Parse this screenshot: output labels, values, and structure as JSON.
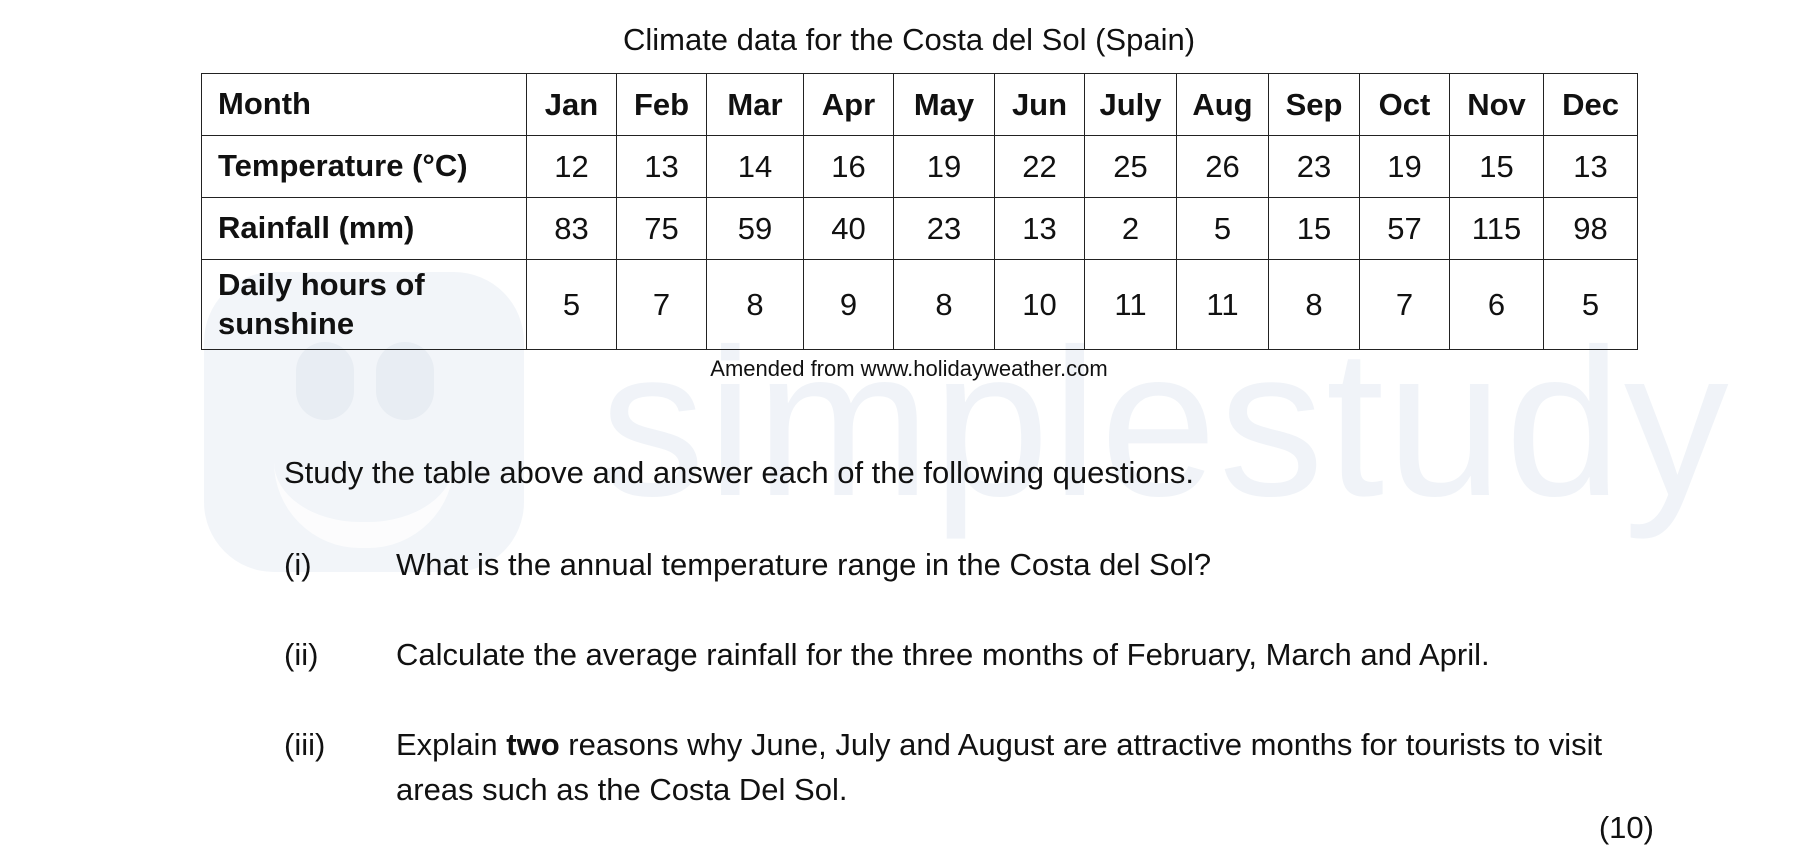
{
  "caption": "Climate data for the Costa del Sol (Spain)",
  "table": {
    "header_label": "Month",
    "months": [
      "Jan",
      "Feb",
      "Mar",
      "Apr",
      "May",
      "Jun",
      "July",
      "Aug",
      "Sep",
      "Oct",
      "Nov",
      "Dec"
    ],
    "rows": [
      {
        "label": "Temperature (°C)",
        "values": [
          "12",
          "13",
          "14",
          "16",
          "19",
          "22",
          "25",
          "26",
          "23",
          "19",
          "15",
          "13"
        ]
      },
      {
        "label": "Rainfall (mm)",
        "values": [
          "83",
          "75",
          "59",
          "40",
          "23",
          "13",
          "2",
          "5",
          "15",
          "57",
          "115",
          "98"
        ]
      },
      {
        "label": "Daily hours of sunshine",
        "values": [
          "5",
          "7",
          "8",
          "9",
          "8",
          "10",
          "11",
          "11",
          "8",
          "7",
          "6",
          "5"
        ]
      }
    ]
  },
  "source": "Amended from www.holidayweather.com",
  "instruction": "Study the table above and answer each of the following questions.",
  "questions": [
    {
      "num": "(i)",
      "text": "What is the annual temperature range in the Costa del Sol?"
    },
    {
      "num": "(ii)",
      "text": "Calculate the average rainfall for the three months of February, March and April."
    },
    {
      "num": "(iii)",
      "text_before": "Explain ",
      "text_bold": "two",
      "text_after": " reasons why June, July and August are attractive months for tourists to visit areas such as the Costa Del Sol."
    }
  ],
  "marks": "(10)",
  "watermark": {
    "text": "simplestudy",
    "color": "#eef2f7"
  }
}
